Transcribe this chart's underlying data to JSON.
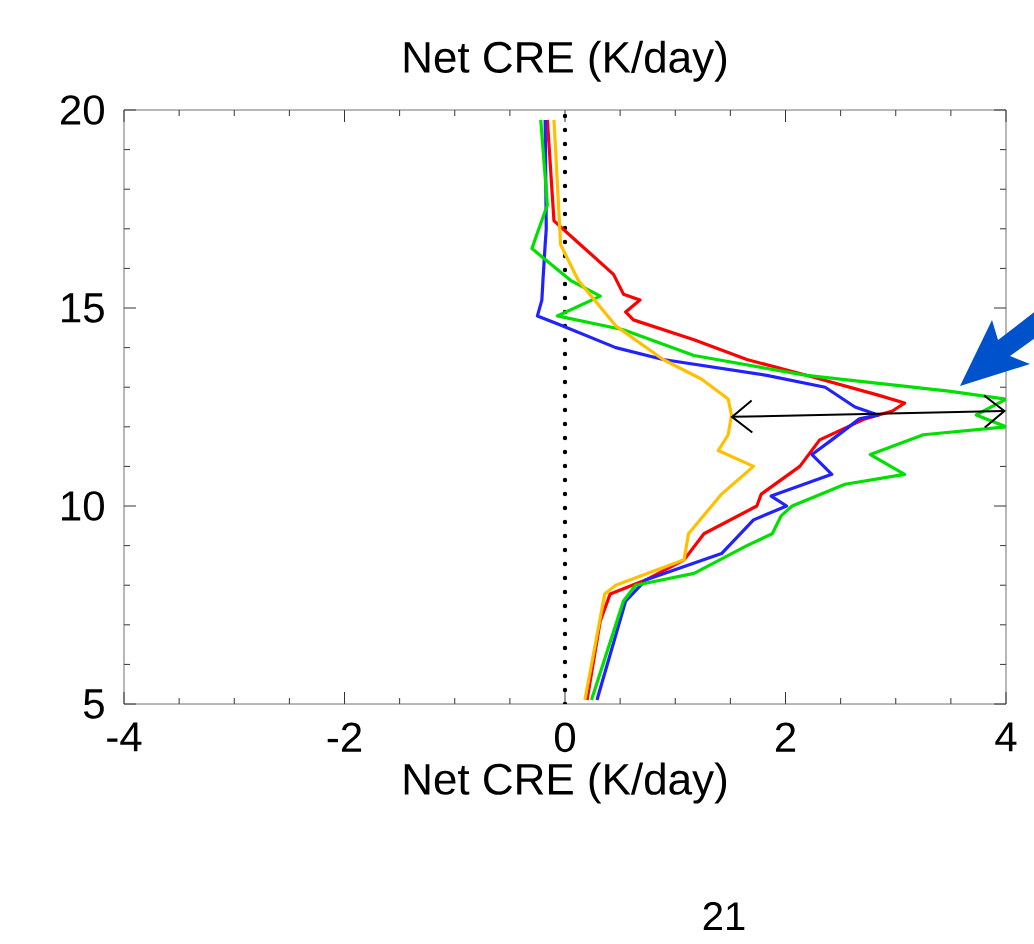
{
  "chart_data": {
    "type": "line",
    "title": "Net CRE (K/day)",
    "xlabel": "Net CRE (K/day)",
    "xlim": [
      -4,
      4
    ],
    "ylim": [
      5,
      20
    ],
    "xticks": [
      -4,
      -2,
      0,
      2,
      4
    ],
    "yticks": [
      5,
      10,
      15,
      20
    ],
    "grid": false,
    "ref_lines": [
      {
        "axis": "x",
        "value": 0,
        "color": "#000000",
        "line_style": "dotted"
      }
    ],
    "annotations": [
      "21"
    ],
    "series": [
      {
        "color": "#ff0000",
        "x": [
          -0.16,
          -0.1,
          0.1,
          0.44,
          0.53,
          0.68,
          0.55,
          0.62,
          1.17,
          1.65,
          2.19,
          2.84,
          3.08,
          2.97,
          2.72,
          2.31,
          2.13,
          1.78,
          1.74,
          1.26,
          1.08,
          0.73,
          0.41,
          0.32,
          0.2
        ],
        "values": [
          19.75,
          17.2,
          16.7,
          15.85,
          15.35,
          15.2,
          14.9,
          14.7,
          14.2,
          13.7,
          13.3,
          12.8,
          12.6,
          12.4,
          12.2,
          11.67,
          11.0,
          10.3,
          10.0,
          9.3,
          8.64,
          8.13,
          7.78,
          7.1,
          5.1
        ]
      },
      {
        "color": "#2222ff",
        "x": [
          -0.18,
          -0.17,
          -0.18,
          -0.2,
          -0.21,
          -0.25,
          -0.07,
          0.46,
          0.89,
          1.83,
          2.36,
          2.63,
          2.84,
          2.67,
          2.42,
          2.24,
          2.42,
          1.87,
          2.01,
          1.71,
          1.42,
          0.73,
          0.55,
          0.29
        ],
        "values": [
          19.75,
          17.0,
          16.6,
          15.7,
          15.2,
          14.8,
          14.6,
          14.0,
          13.7,
          13.3,
          13.0,
          12.5,
          12.3,
          12.2,
          11.67,
          11.3,
          10.8,
          10.25,
          10.0,
          9.65,
          8.8,
          8.13,
          7.6,
          5.1
        ]
      },
      {
        "color": "#00e000",
        "x": [
          -0.22,
          -0.16,
          -0.25,
          -0.3,
          0.05,
          0.32,
          -0.07,
          0.53,
          1.17,
          2.19,
          3.48,
          4.0,
          3.73,
          4.0,
          3.25,
          2.77,
          3.08,
          2.54,
          2.06,
          1.96,
          1.88,
          1.65,
          1.17,
          0.64,
          0.53,
          0.24
        ],
        "values": [
          19.75,
          17.6,
          16.9,
          16.5,
          15.7,
          15.3,
          14.8,
          14.45,
          13.8,
          13.3,
          12.9,
          12.7,
          12.3,
          12.0,
          11.8,
          11.3,
          10.8,
          10.55,
          10.0,
          9.75,
          9.3,
          9.0,
          8.3,
          8.0,
          7.6,
          5.1
        ]
      },
      {
        "color": "#ffc000",
        "x": [
          -0.1,
          -0.04,
          0.12,
          0.46,
          0.89,
          1.24,
          1.48,
          1.51,
          1.48,
          1.39,
          1.71,
          1.42,
          1.33,
          1.12,
          1.08,
          0.46,
          0.36,
          0.18
        ],
        "values": [
          19.75,
          16.6,
          15.7,
          14.55,
          13.7,
          13.2,
          12.7,
          12.3,
          11.8,
          11.4,
          11.0,
          10.3,
          10.0,
          9.3,
          8.64,
          8.0,
          7.78,
          5.1
        ]
      }
    ]
  }
}
